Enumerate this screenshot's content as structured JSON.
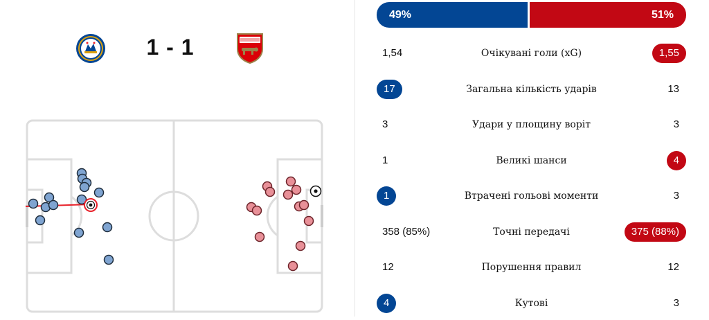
{
  "match": {
    "home_team": {
      "crest_icon": "chelsea-crest-icon",
      "color": "#034694"
    },
    "away_team": {
      "crest_icon": "arsenal-crest-icon",
      "color": "#c20814"
    },
    "score": "1 - 1"
  },
  "pitch": {
    "icons": [
      "goal-ball-icon"
    ],
    "pitch_line_color": "#dddddd"
  },
  "possession": {
    "home": "49%",
    "away": "51%",
    "home_fraction": 0.49,
    "away_fraction": 0.51
  },
  "stats": [
    {
      "label": "Очікувані голи (xG)",
      "home": "1,54",
      "away": "1,55",
      "highlight": "away"
    },
    {
      "label": "Загальна кількість ударів",
      "home": "17",
      "away": "13",
      "highlight": "home"
    },
    {
      "label": "Удари у площину воріт",
      "home": "3",
      "away": "3",
      "highlight": "none"
    },
    {
      "label": "Великі шанси",
      "home": "1",
      "away": "4",
      "highlight": "away"
    },
    {
      "label": "Втрачені гольові моменти",
      "home": "1",
      "away": "3",
      "highlight": "home"
    },
    {
      "label": "Точні передачі",
      "home": "358 (85%)",
      "away": "375 (88%)",
      "highlight": "away"
    },
    {
      "label": "Порушення правил",
      "home": "12",
      "away": "12",
      "highlight": "none"
    },
    {
      "label": "Кутові",
      "home": "4",
      "away": "3",
      "highlight": "home"
    }
  ]
}
